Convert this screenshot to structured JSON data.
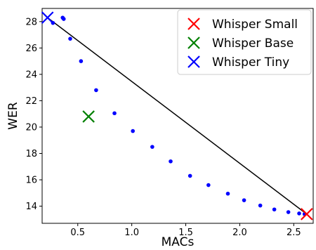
{
  "chart_data": {
    "type": "scatter",
    "xlabel": "MACs",
    "ylabel": "WER",
    "xlim": [
      0.17,
      2.68
    ],
    "ylim": [
      12.7,
      29.0
    ],
    "xticks": [
      0.5,
      1.0,
      1.5,
      2.0,
      2.5
    ],
    "xtick_labels": [
      "0.5",
      "1.0",
      "1.5",
      "2.0",
      "2.5"
    ],
    "yticks": [
      14,
      16,
      18,
      20,
      22,
      24,
      26,
      28
    ],
    "ytick_labels": [
      "14",
      "16",
      "18",
      "20",
      "22",
      "24",
      "26",
      "28"
    ],
    "grid": false,
    "legend": {
      "position": "top-right"
    },
    "points": {
      "color": "#0000ff",
      "x": [
        0.27,
        0.36,
        0.37,
        0.43,
        0.53,
        0.67,
        0.84,
        1.01,
        1.19,
        1.36,
        1.54,
        1.71,
        1.89,
        2.04,
        2.19,
        2.32,
        2.45,
        2.55,
        2.6
      ],
      "y": [
        27.9,
        28.3,
        28.2,
        26.7,
        25.0,
        22.8,
        21.05,
        19.7,
        18.5,
        17.4,
        16.3,
        15.6,
        14.95,
        14.45,
        14.05,
        13.75,
        13.55,
        13.45,
        13.4
      ]
    },
    "frontier_line": {
      "color": "#000000",
      "x": [
        0.22,
        2.62
      ],
      "y": [
        28.3,
        13.4
      ]
    },
    "series": [
      {
        "name": "Whisper Small",
        "marker": "x",
        "color": "#ff0000",
        "x": [
          2.62
        ],
        "y": [
          13.4
        ]
      },
      {
        "name": "Whisper Base",
        "marker": "x",
        "color": "#008000",
        "x": [
          0.6
        ],
        "y": [
          20.8
        ]
      },
      {
        "name": "Whisper Tiny",
        "marker": "x",
        "color": "#0000ff",
        "x": [
          0.22
        ],
        "y": [
          28.3
        ]
      }
    ]
  }
}
